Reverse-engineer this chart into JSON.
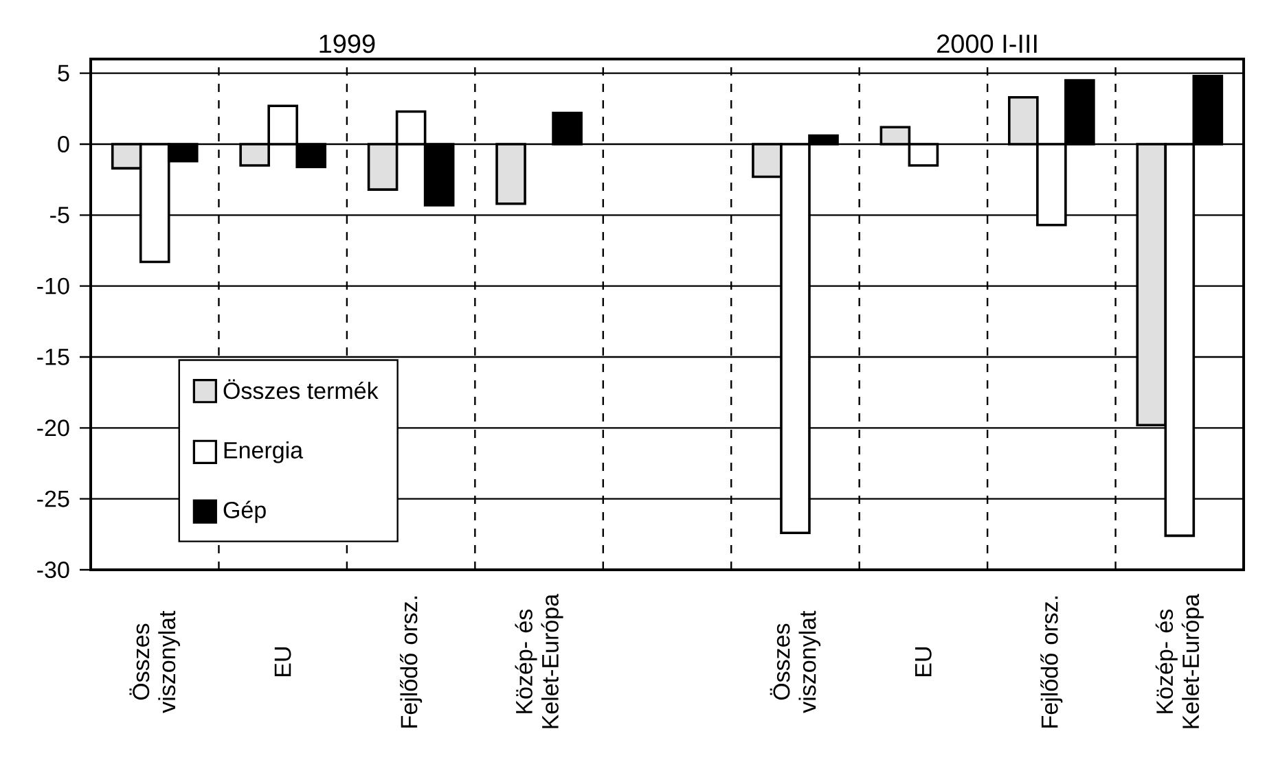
{
  "chart_data": {
    "type": "bar",
    "categories": [
      "Összes viszonylat",
      "EU",
      "Fejlődő orsz.",
      "Közép- és Kelet-Európa",
      null,
      "Összes viszonylat",
      "EU",
      "Fejlődő orsz.",
      "Közép- és Kelet-Európa"
    ],
    "series": [
      {
        "name": "Összes termék",
        "color": "#e0e0e0",
        "values": [
          -1.7,
          -1.5,
          -3.2,
          -4.2,
          null,
          -2.3,
          1.2,
          3.3,
          -19.8
        ]
      },
      {
        "name": "Energia",
        "color": "#ffffff",
        "values": [
          -8.3,
          2.7,
          2.3,
          null,
          null,
          -27.4,
          -1.5,
          -5.7,
          -27.6
        ]
      },
      {
        "name": "Gép",
        "color": "#000000",
        "values": [
          -1.2,
          -1.6,
          -4.3,
          2.2,
          null,
          0.6,
          null,
          4.5,
          4.8
        ]
      }
    ],
    "annotations": [
      "1999",
      "2000 I-III"
    ],
    "ylim": [
      -30,
      6
    ],
    "yticks": [
      -30,
      -25,
      -20,
      -15,
      -10,
      -5,
      0,
      5
    ],
    "grid": true,
    "legend": "bottom left"
  }
}
